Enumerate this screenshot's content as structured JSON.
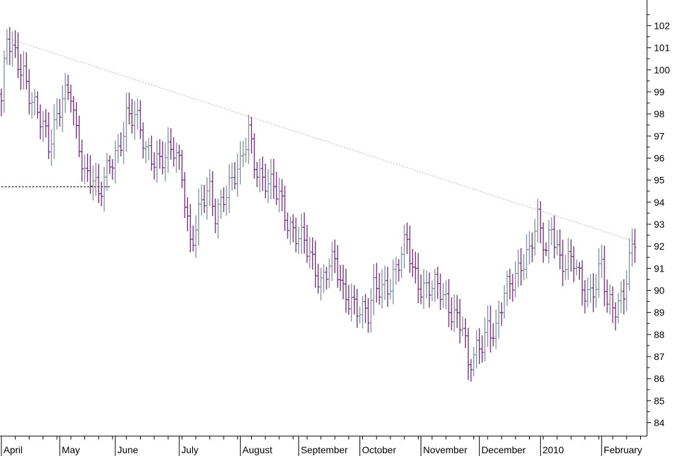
{
  "chart_data": {
    "type": "ohlc",
    "title": "",
    "xlabel": "",
    "ylabel": "",
    "ylim": [
      83.5,
      103.5
    ],
    "y_ticks": [
      84,
      85,
      86,
      87,
      88,
      89,
      90,
      91,
      92,
      93,
      94,
      95,
      96,
      97,
      98,
      99,
      100,
      101,
      102
    ],
    "x_axis_labels": [
      "April",
      "May",
      "June",
      "July",
      "August",
      "September",
      "October",
      "November",
      "December",
      "2010",
      "February"
    ],
    "grid": false,
    "colors": {
      "up_bar": "#7a8fa0",
      "down_bar": "#7a1f86",
      "trendline": "#b8b8b8",
      "support_line": "#000000",
      "axis": "#000000",
      "background": "#ffffff"
    },
    "annotations": [
      {
        "type": "trendline",
        "style": "dotted",
        "from": {
          "bar": 1,
          "value": 101.4
        },
        "to": {
          "bar": 228,
          "value": 92.2
        }
      },
      {
        "type": "horizontal_line",
        "style": "dashed",
        "value": 94.7,
        "from_bar": 0,
        "to_bar": 40
      }
    ],
    "series": [
      {
        "keypoints": [
          [
            0,
            98.6
          ],
          [
            2,
            101.2
          ],
          [
            4,
            100.6
          ],
          [
            8,
            100.1
          ],
          [
            12,
            98.3
          ],
          [
            17,
            96.4
          ],
          [
            19,
            97.6
          ],
          [
            22,
            99.1
          ],
          [
            25,
            98.8
          ],
          [
            27,
            96.7
          ],
          [
            30,
            95.3
          ],
          [
            33,
            95.5
          ],
          [
            35,
            94.4
          ],
          [
            38,
            95.1
          ],
          [
            42,
            96.3
          ],
          [
            45,
            98.2
          ],
          [
            48,
            97.9
          ],
          [
            52,
            96.1
          ],
          [
            58,
            96.2
          ],
          [
            62,
            96.1
          ],
          [
            65,
            95.2
          ],
          [
            68,
            92.4
          ],
          [
            70,
            93.1
          ],
          [
            72,
            93.9
          ],
          [
            75,
            94.2
          ],
          [
            77,
            93.4
          ],
          [
            80,
            94.6
          ],
          [
            83,
            95.0
          ],
          [
            86,
            95.3
          ],
          [
            89,
            97.3
          ],
          [
            91,
            96.1
          ],
          [
            94,
            95.1
          ],
          [
            97,
            94.5
          ],
          [
            100,
            94.2
          ],
          [
            104,
            93.1
          ],
          [
            108,
            92.2
          ],
          [
            112,
            91.1
          ],
          [
            115,
            90.6
          ],
          [
            118,
            91.4
          ],
          [
            120,
            91.1
          ],
          [
            123,
            89.6
          ],
          [
            126,
            89.7
          ],
          [
            129,
            89.4
          ],
          [
            132,
            88.7
          ],
          [
            134,
            89.8
          ],
          [
            137,
            90.2
          ],
          [
            140,
            90.6
          ],
          [
            143,
            91.2
          ],
          [
            146,
            92.0
          ],
          [
            148,
            90.9
          ],
          [
            151,
            90.4
          ],
          [
            154,
            90.2
          ],
          [
            157,
            89.9
          ],
          [
            160,
            89.4
          ],
          [
            163,
            89.2
          ],
          [
            166,
            88.5
          ],
          [
            168,
            86.2
          ],
          [
            170,
            86.8
          ],
          [
            173,
            87.8
          ],
          [
            175,
            88.6
          ],
          [
            178,
            88.1
          ],
          [
            181,
            89.6
          ],
          [
            184,
            90.5
          ],
          [
            187,
            91.5
          ],
          [
            190,
            91.7
          ],
          [
            193,
            92.9
          ],
          [
            196,
            91.8
          ],
          [
            198,
            93.3
          ],
          [
            201,
            91.4
          ],
          [
            203,
            90.9
          ],
          [
            206,
            91.2
          ],
          [
            209,
            90.4
          ],
          [
            212,
            90.0
          ],
          [
            214,
            90.2
          ],
          [
            216,
            90.9
          ],
          [
            218,
            89.2
          ],
          [
            221,
            89.5
          ],
          [
            224,
            90.1
          ],
          [
            226,
            91.2
          ],
          [
            228,
            92.0
          ]
        ]
      }
    ]
  }
}
